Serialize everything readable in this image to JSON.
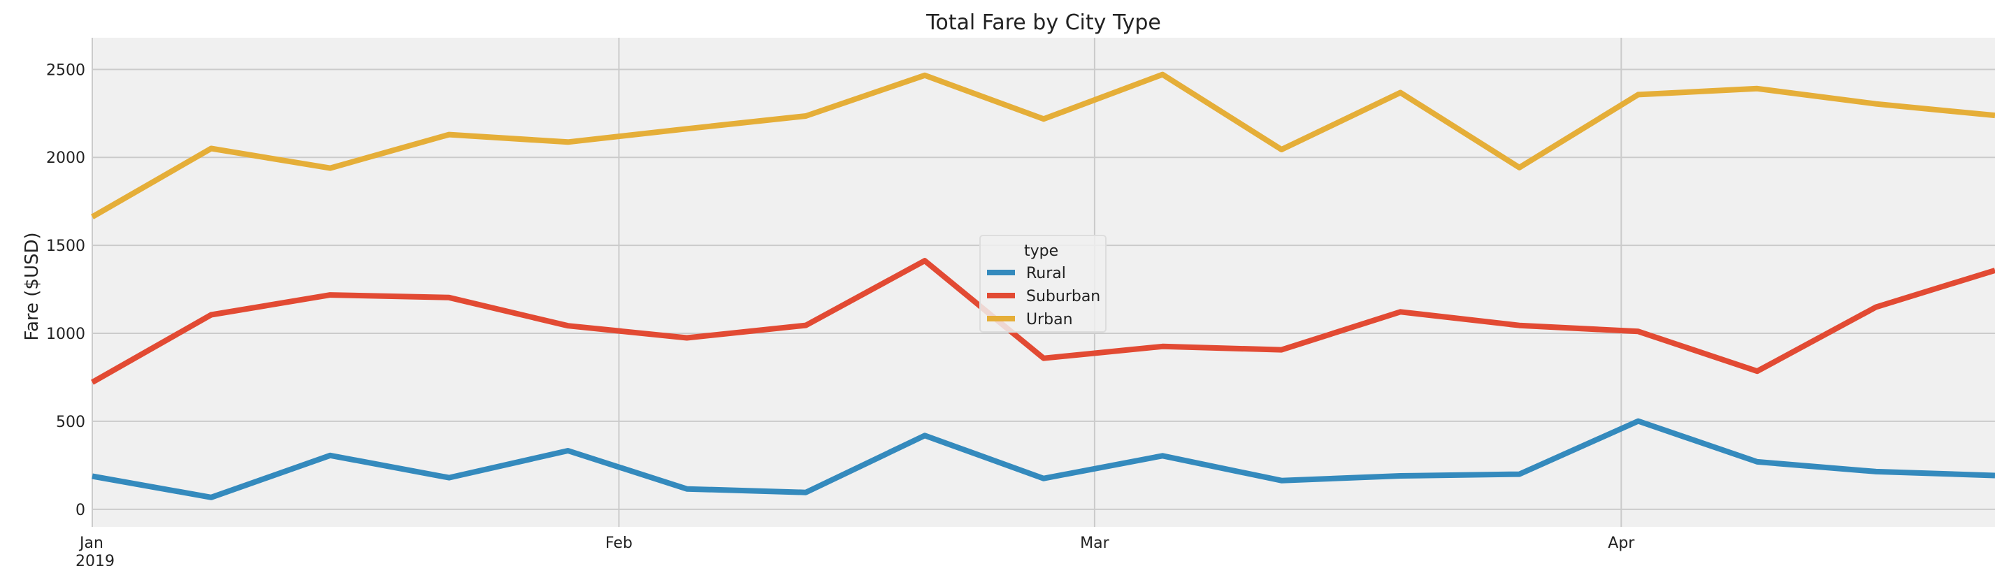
{
  "chart_data": {
    "type": "line",
    "title": "Total Fare by City Type",
    "xlabel": "",
    "ylabel": "Fare ($USD)",
    "ylim": [
      -100,
      2680
    ],
    "yticks": [
      0,
      500,
      1000,
      1500,
      2000,
      2500
    ],
    "x": [
      "2019-01-06",
      "2019-01-13",
      "2019-01-20",
      "2019-01-27",
      "2019-02-03",
      "2019-02-10",
      "2019-02-17",
      "2019-02-24",
      "2019-03-03",
      "2019-03-10",
      "2019-03-17",
      "2019-03-24",
      "2019-03-31",
      "2019-04-07",
      "2019-04-14",
      "2019-04-21",
      "2019-04-28"
    ],
    "xlim": [
      "2019-01-06",
      "2019-04-28"
    ],
    "xtick_labels": [
      {
        "date": "2019-01-06",
        "label": "Jan",
        "sublabel": "2019"
      },
      {
        "date": "2019-02-06",
        "label": "Feb",
        "sublabel": ""
      },
      {
        "date": "2019-03-06",
        "label": "Mar",
        "sublabel": ""
      },
      {
        "date": "2019-04-06",
        "label": "Apr",
        "sublabel": ""
      }
    ],
    "legend": {
      "title": "type",
      "position": "center"
    },
    "grid": true,
    "series": [
      {
        "name": "Rural",
        "color": "#348ABD",
        "values": [
          187.92,
          67.65,
          306.0,
          179.69,
          333.08,
          115.8,
          95.82,
          419.06,
          175.14,
          303.94,
          163.39,
          189.76,
          199.42,
          501.24,
          269.79,
          214.14,
          191.85
        ]
      },
      {
        "name": "Suburban",
        "color": "#E24A33",
        "values": [
          721.6,
          1105.13,
          1218.2,
          1203.28,
          1042.79,
          974.34,
          1045.5,
          1412.74,
          858.46,
          925.27,
          906.2,
          1122.2,
          1045.06,
          1010.73,
          784.82,
          1149.27,
          1357.75
        ]
      },
      {
        "name": "Urban",
        "color": "#E5AE38",
        "values": [
          1661.68,
          2050.43,
          1939.02,
          2129.51,
          2086.94,
          2162.64,
          2235.07,
          2466.29,
          2218.2,
          2470.93,
          2044.42,
          2368.37,
          1942.24,
          2356.7,
          2390.72,
          2303.8,
          2238.29
        ]
      }
    ]
  }
}
